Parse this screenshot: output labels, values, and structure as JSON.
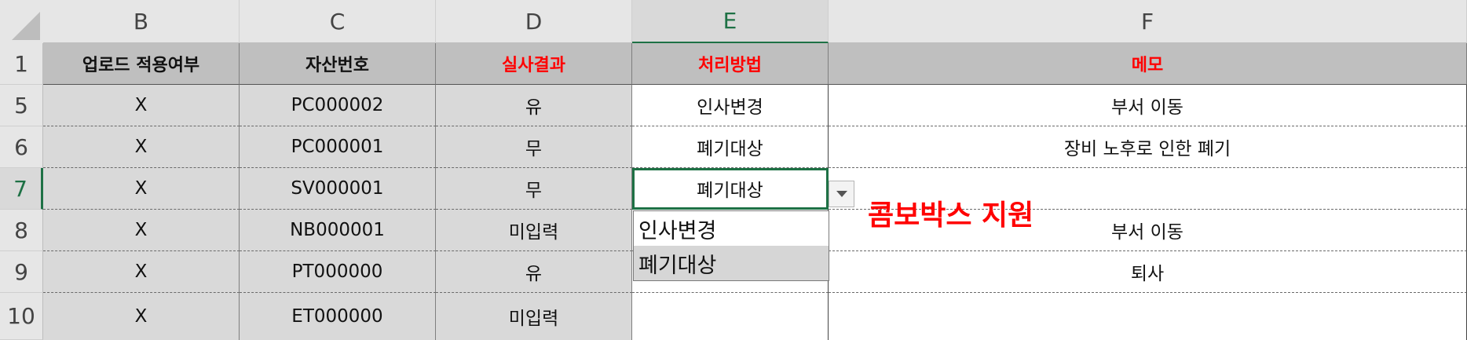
{
  "columns": [
    "B",
    "C",
    "D",
    "E",
    "F"
  ],
  "active_column": "E",
  "rows": [
    "1",
    "5",
    "6",
    "7",
    "8",
    "9",
    "10"
  ],
  "active_row": "7",
  "header_row": {
    "b": "업로드 적용여부",
    "c": "자산번호",
    "d": "실사결과",
    "e": "처리방법",
    "f": "메모"
  },
  "data_rows": [
    {
      "b": "X",
      "c": "PC000002",
      "d": "유",
      "e": "인사변경",
      "f": "부서 이동"
    },
    {
      "b": "X",
      "c": "PC000001",
      "d": "무",
      "e": "폐기대상",
      "f": "장비 노후로 인한 폐기"
    },
    {
      "b": "X",
      "c": "SV000001",
      "d": "무",
      "e": "폐기대상",
      "f": ""
    },
    {
      "b": "X",
      "c": "NB000001",
      "d": "미입력",
      "e": "",
      "f": "부서 이동"
    },
    {
      "b": "X",
      "c": "PT000000",
      "d": "유",
      "e": "",
      "f": "퇴사"
    },
    {
      "b": "X",
      "c": "ET000000",
      "d": "미입력",
      "e": "",
      "f": ""
    }
  ],
  "dropdown": {
    "options": [
      "인사변경",
      "폐기대상"
    ],
    "highlighted": "폐기대상",
    "arrow_icon": "chevron-down-icon"
  },
  "annotation": "콤보박스 지원",
  "colors": {
    "accent_green": "#1e7145",
    "header_fill": "#bfbfbf",
    "locked_fill": "#d9d9d9",
    "red_text": "#ff0000"
  }
}
